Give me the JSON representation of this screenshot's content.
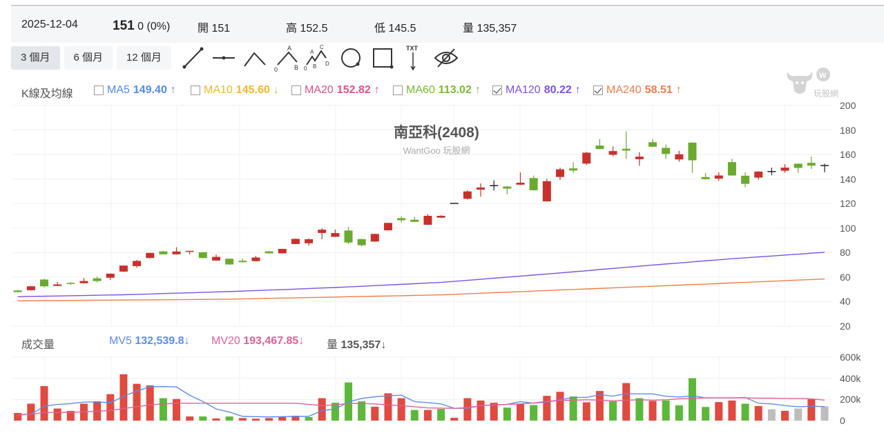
{
  "quote": {
    "date": "2025-12-04",
    "price": "151",
    "change": "0 (0%)",
    "open_label": "開",
    "open": "151",
    "high_label": "高",
    "high": "152.5",
    "low_label": "低",
    "low": "145.5",
    "volume_label": "量",
    "volume": "135,357"
  },
  "periods": [
    {
      "label": "3 個月",
      "active": true
    },
    {
      "label": "6 個月",
      "active": false
    },
    {
      "label": "12 個月",
      "active": false
    }
  ],
  "tools": [
    "trend-line-icon",
    "horizontal-line-icon",
    "angle-line-icon",
    "abc-pattern-icon",
    "abcd-pattern-icon",
    "circle-icon",
    "rectangle-icon",
    "text-arrow-icon",
    "hide-eye-icon"
  ],
  "tool_text": {
    "abc": [
      "A",
      "0",
      "B"
    ],
    "abcd": [
      "A",
      "C",
      "0",
      "B",
      "D"
    ],
    "txt": "TXT"
  },
  "legend": {
    "title": "K線及均線",
    "items": [
      {
        "name": "MA5",
        "value": "149.40",
        "arrow": "↑",
        "checked": false,
        "color": "#4e8cf2"
      },
      {
        "name": "MA10",
        "value": "145.60",
        "arrow": "↓",
        "checked": false,
        "color": "#f5b52e"
      },
      {
        "name": "MA20",
        "value": "152.82",
        "arrow": "↑",
        "checked": false,
        "color": "#e0508a"
      },
      {
        "name": "MA60",
        "value": "113.02",
        "arrow": "↑",
        "checked": false,
        "color": "#7cb82f"
      },
      {
        "name": "MA120",
        "value": "80.22",
        "arrow": "↑",
        "checked": true,
        "color": "#7b4fe8"
      },
      {
        "name": "MA240",
        "value": "58.51",
        "arrow": "↑",
        "checked": true,
        "color": "#f07c4a"
      }
    ]
  },
  "watermark": {
    "logo_text": "玩股網"
  },
  "volume_legend": {
    "title": "成交量",
    "mv5": {
      "name": "MV5",
      "value": "132,539.8",
      "arrow": "↓",
      "color": "#5b8def"
    },
    "mv20": {
      "name": "MV20",
      "value": "193,467.85",
      "arrow": "↓",
      "color": "#e0609a"
    },
    "vol": {
      "name": "量",
      "value": "135,357",
      "arrow": "↓",
      "color": "#555"
    }
  },
  "colors": {
    "up": "#c8302a",
    "down": "#6aaa2e",
    "flat": "#222",
    "vol_up": "#e04a3f",
    "vol_down": "#5db83a",
    "vol_flat": "#bdbdbd"
  },
  "chart_data": [
    {
      "type": "candlestick",
      "title": "南亞科(2408)",
      "subtitle": "WantGoo 玩股網",
      "ylim": [
        20,
        200
      ],
      "yticks": [
        "200",
        "180",
        "160",
        "140",
        "120",
        "100",
        "80",
        "60",
        "40",
        "20"
      ],
      "grid": true,
      "ohlc": [
        [
          49.1,
          49.6,
          47.4,
          47.8
        ],
        [
          49.3,
          52.7,
          49.1,
          52.5
        ],
        [
          58.0,
          58.7,
          51.6,
          52.5
        ],
        [
          52.8,
          56.0,
          52.6,
          54.0
        ],
        [
          54.8,
          56.0,
          54.0,
          54.2
        ],
        [
          55.0,
          59.3,
          54.8,
          56.8
        ],
        [
          59.0,
          60.6,
          55.7,
          56.8
        ],
        [
          59.5,
          63.0,
          57.6,
          62.8
        ],
        [
          64.5,
          69.6,
          64.1,
          69.4
        ],
        [
          69.0,
          74.0,
          67.7,
          73.2
        ],
        [
          75.6,
          79.9,
          75.4,
          79.7
        ],
        [
          80.9,
          81.5,
          78.4,
          78.6
        ],
        [
          78.6,
          84.4,
          78.4,
          80.9
        ],
        [
          80.6,
          81.2,
          78.6,
          81.0
        ],
        [
          80.3,
          80.5,
          75.4,
          75.6
        ],
        [
          73.5,
          78.4,
          73.3,
          76.5
        ],
        [
          75.0,
          75.2,
          70.1,
          70.3
        ],
        [
          73.3,
          75.2,
          72.0,
          72.2
        ],
        [
          73.0,
          77.3,
          72.8,
          76.0
        ],
        [
          81.0,
          81.2,
          79.2,
          79.4
        ],
        [
          79.4,
          83.2,
          79.2,
          83.0
        ],
        [
          87.0,
          91.4,
          86.8,
          91.2
        ],
        [
          87.6,
          91.5,
          85.7,
          90.9
        ],
        [
          96.0,
          99.8,
          91.0,
          98.7
        ],
        [
          92.9,
          98.8,
          92.7,
          95.9
        ],
        [
          98.0,
          100.9,
          86.9,
          88.2
        ],
        [
          91.0,
          91.2,
          85.2,
          86.0
        ],
        [
          89.0,
          95.4,
          88.8,
          95.2
        ],
        [
          98.2,
          104.4,
          98.0,
          104.2
        ],
        [
          108.1,
          109.6,
          104.6,
          106.4
        ],
        [
          106.8,
          109.2,
          104.9,
          105.1
        ],
        [
          102.7,
          111.3,
          102.5,
          110.0
        ],
        [
          108.5,
          110.5,
          108.3,
          110.0
        ],
        [
          120.1,
          120.3,
          120.0,
          120.1
        ],
        [
          123.9,
          131.0,
          123.3,
          129.9
        ],
        [
          131.4,
          136.5,
          125.6,
          133.1
        ],
        [
          134.6,
          138.9,
          130.6,
          134.6
        ],
        [
          133.9,
          134.1,
          127.6,
          132.2
        ],
        [
          135.4,
          145.4,
          135.2,
          137.0
        ],
        [
          140.8,
          142.8,
          130.7,
          130.9
        ],
        [
          121.8,
          140.2,
          121.6,
          138.2
        ],
        [
          141.7,
          149.3,
          139.3,
          147.9
        ],
        [
          148.7,
          153.8,
          145.1,
          147.0
        ],
        [
          152.6,
          162.0,
          151.5,
          161.5
        ],
        [
          167.3,
          172.6,
          164.3,
          164.5
        ],
        [
          159.8,
          166.7,
          158.6,
          162.8
        ],
        [
          164.7,
          178.9,
          156.4,
          163.2
        ],
        [
          156.2,
          162.0,
          150.8,
          158.3
        ],
        [
          170.0,
          172.6,
          166.0,
          166.4
        ],
        [
          165.4,
          168.1,
          156.4,
          160.5
        ],
        [
          156.0,
          163.0,
          154.1,
          160.2
        ],
        [
          169.7,
          170.0,
          145.1,
          155.3
        ],
        [
          141.6,
          145.0,
          139.7,
          139.9
        ],
        [
          140.4,
          145.5,
          138.4,
          142.9
        ],
        [
          153.8,
          156.4,
          142.7,
          142.9
        ],
        [
          142.7,
          145.5,
          133.3,
          136.1
        ],
        [
          141.2,
          146.3,
          139.5,
          146.1
        ],
        [
          146.1,
          149.3,
          143.1,
          146.1
        ],
        [
          146.8,
          152.1,
          145.1,
          149.3
        ],
        [
          152.5,
          152.7,
          145.1,
          149.1
        ],
        [
          153.2,
          158.3,
          148.2,
          151.0
        ],
        [
          151,
          152.5,
          145.5,
          151
        ]
      ],
      "series": [
        {
          "name": "MA120",
          "color": "#7b4fe8",
          "values": [
            44.0,
            44.2,
            44.4,
            44.6,
            44.8,
            45.0,
            45.2,
            45.4,
            45.6,
            45.9,
            46.2,
            46.6,
            46.9,
            47.2,
            47.5,
            47.9,
            48.2,
            48.6,
            49.0,
            49.4,
            49.8,
            50.2,
            50.7,
            51.1,
            51.5,
            52.0,
            52.5,
            53.1,
            53.6,
            54.1,
            54.6,
            55.2,
            55.7,
            56.5,
            57.4,
            58.2,
            59.1,
            60.0,
            60.8,
            61.7,
            62.5,
            63.4,
            64.3,
            65.2,
            66.2,
            67.1,
            68.0,
            68.9,
            69.8,
            70.7,
            71.5,
            72.4,
            73.3,
            74.1,
            75.0,
            75.7,
            76.5,
            77.2,
            78.0,
            78.7,
            79.5,
            80.2
          ]
        },
        {
          "name": "MA240",
          "color": "#f07c4a",
          "values": [
            40.7,
            40.8,
            40.9,
            40.9,
            41.0,
            41.1,
            41.2,
            41.2,
            41.3,
            41.4,
            41.5,
            41.5,
            41.6,
            41.7,
            41.8,
            41.9,
            42.0,
            42.2,
            42.4,
            42.7,
            42.9,
            43.1,
            43.3,
            43.5,
            43.7,
            44.0,
            44.2,
            44.4,
            44.6,
            44.8,
            45.1,
            45.3,
            45.5,
            45.9,
            46.4,
            46.8,
            47.3,
            47.7,
            48.1,
            48.6,
            49.0,
            49.5,
            49.9,
            50.3,
            50.8,
            51.2,
            51.7,
            52.1,
            52.5,
            53.0,
            53.4,
            53.9,
            54.3,
            54.8,
            55.3,
            55.7,
            56.2,
            56.6,
            57.1,
            57.6,
            58.0,
            58.5
          ]
        }
      ]
    },
    {
      "type": "bar",
      "ylim": [
        0,
        600000
      ],
      "yticks": [
        "600k",
        "400k",
        "200k",
        "0"
      ],
      "grid": true,
      "volumes": [
        72000,
        160000,
        326000,
        114000,
        92000,
        160000,
        182000,
        250000,
        438000,
        348000,
        333000,
        212000,
        204000,
        39000,
        39000,
        20000,
        39000,
        24000,
        18000,
        24000,
        39000,
        46000,
        33000,
        212000,
        169000,
        361000,
        182000,
        131000,
        258000,
        212000,
        100000,
        100000,
        110000,
        26000,
        212000,
        190000,
        169000,
        123000,
        158000,
        147000,
        234000,
        272000,
        228000,
        173000,
        280000,
        182000,
        355000,
        212000,
        186000,
        190000,
        145000,
        401000,
        129000,
        175000,
        190000,
        160000,
        138000,
        107000,
        92000,
        114000,
        201000,
        135357
      ],
      "directions": [
        "up",
        "up",
        "up",
        "up",
        "up",
        "up",
        "up",
        "up",
        "up",
        "up",
        "up",
        "down",
        "up",
        "up",
        "down",
        "up",
        "down",
        "up",
        "up",
        "up",
        "up",
        "up",
        "down",
        "up",
        "down",
        "down",
        "down",
        "up",
        "up",
        "up",
        "down",
        "up",
        "down",
        "up",
        "up",
        "up",
        "up",
        "down",
        "up",
        "down",
        "up",
        "up",
        "down",
        "up",
        "up",
        "down",
        "up",
        "down",
        "up",
        "down",
        "down",
        "down",
        "down",
        "up",
        "up",
        "down",
        "up",
        "flat",
        "up",
        "flat",
        "up",
        "flat"
      ],
      "series": [
        {
          "name": "MV5",
          "color": "#5b8def",
          "values": [
            53000,
            59000,
            136000,
            153000,
            160000,
            175000,
            177000,
            168000,
            230000,
            280000,
            320000,
            322000,
            318000,
            240000,
            180000,
            110000,
            80000,
            40000,
            37000,
            35000,
            37000,
            40000,
            40000,
            95000,
            110000,
            175000,
            210000,
            225000,
            235000,
            240000,
            180000,
            170000,
            158000,
            116000,
            116000,
            142000,
            149000,
            153000,
            180000,
            164000,
            175000,
            197000,
            219000,
            219000,
            245000,
            232000,
            254000,
            252000,
            252000,
            230000,
            223000,
            234000,
            215000,
            215000,
            215000,
            219000,
            164000,
            158000,
            142000,
            131000,
            136000,
            132539.8
          ]
        },
        {
          "name": "MV20",
          "color": "#e0609a",
          "values": [
            55000,
            61000,
            77000,
            77000,
            79000,
            83000,
            88000,
            96000,
            114000,
            131000,
            149000,
            158000,
            164000,
            164000,
            164000,
            164000,
            164000,
            164000,
            164000,
            164000,
            164000,
            164000,
            153000,
            142000,
            149000,
            162000,
            162000,
            158000,
            149000,
            142000,
            131000,
            120000,
            118000,
            116000,
            123000,
            140000,
            149000,
            153000,
            158000,
            166000,
            182000,
            190000,
            193000,
            197000,
            193000,
            186000,
            193000,
            197000,
            193000,
            197000,
            206000,
            210000,
            215000,
            215000,
            215000,
            215000,
            212000,
            212000,
            210000,
            208000,
            206000,
            193467.85
          ]
        }
      ]
    }
  ]
}
